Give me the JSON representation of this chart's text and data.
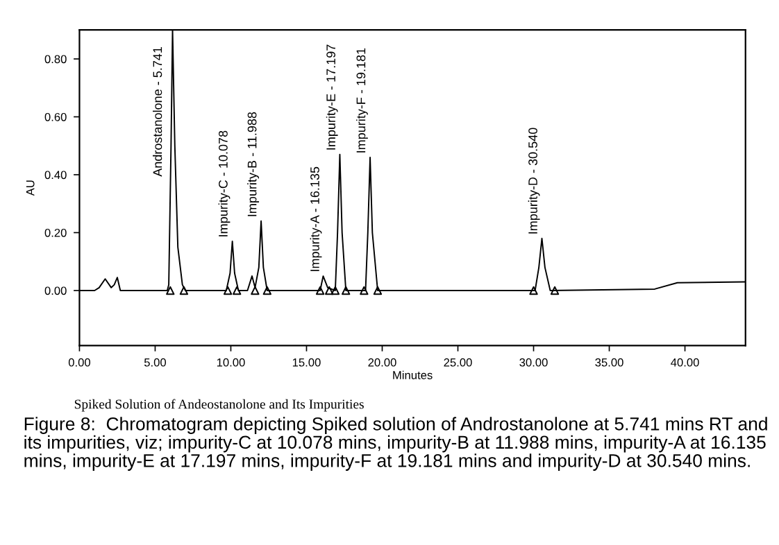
{
  "chart_data": {
    "type": "line",
    "xlabel": "Minutes",
    "ylabel": "AU",
    "xlim": [
      0,
      44
    ],
    "ylim": [
      -0.19,
      0.9
    ],
    "xticks": [
      {
        "value": 0,
        "label": "0.00"
      },
      {
        "value": 5,
        "label": "5.00"
      },
      {
        "value": 10,
        "label": "10.00"
      },
      {
        "value": 15,
        "label": "15.00"
      },
      {
        "value": 20,
        "label": "20.00"
      },
      {
        "value": 25,
        "label": "25.00"
      },
      {
        "value": 30,
        "label": "30.00"
      },
      {
        "value": 35,
        "label": "35.00"
      },
      {
        "value": 40,
        "label": "40.00"
      }
    ],
    "yticks": [
      {
        "value": 0,
        "label": "0.00"
      },
      {
        "value": 0.2,
        "label": "0.20"
      },
      {
        "value": 0.4,
        "label": "0.40"
      },
      {
        "value": 0.6,
        "label": "0.60"
      },
      {
        "value": 0.8,
        "label": "0.80"
      }
    ],
    "grid": false,
    "legend": false,
    "series": [
      {
        "color": "#000000",
        "marker": "none",
        "x": [
          0,
          1.0,
          1.3,
          1.7,
          2.1,
          2.3,
          2.5,
          2.7,
          5.8,
          5.9,
          6.05,
          6.15,
          6.3,
          6.5,
          6.8,
          7.0,
          9.7,
          9.95,
          10.1,
          10.25,
          10.5,
          11.1,
          11.4,
          11.6,
          11.85,
          12.0,
          12.15,
          12.4,
          15.9,
          16.1,
          16.4,
          16.9,
          17.05,
          17.2,
          17.35,
          17.6,
          18.9,
          19.05,
          19.2,
          19.35,
          19.7,
          30.1,
          30.35,
          30.55,
          30.75,
          31.1,
          38.0,
          39.5,
          44
        ],
        "values": [
          0,
          0,
          0.01,
          0.04,
          0.01,
          0.02,
          0.045,
          0,
          0,
          0.02,
          0.5,
          0.9,
          0.5,
          0.15,
          0.02,
          0,
          0,
          0.06,
          0.17,
          0.06,
          0,
          0,
          0.05,
          0.01,
          0.08,
          0.24,
          0.08,
          0,
          0,
          0.05,
          0.01,
          0,
          0.2,
          0.47,
          0.2,
          0,
          0,
          0.2,
          0.46,
          0.2,
          0,
          0,
          0.08,
          0.18,
          0.08,
          0,
          0.005,
          0.027,
          0.03
        ]
      },
      {
        "type": "scatter",
        "color": "#000000",
        "marker": "triangle",
        "x": [
          6.0,
          6.9,
          9.8,
          10.4,
          11.6,
          12.4,
          15.9,
          16.5,
          16.9,
          17.6,
          18.8,
          19.7,
          30.0,
          31.4
        ],
        "values": [
          0,
          0,
          0,
          0,
          0,
          0,
          0,
          0,
          0,
          0,
          0,
          0,
          0,
          0
        ]
      }
    ],
    "annotations": [
      {
        "text": "Androstanolone - 5.741",
        "x": 5.741,
        "y": 0.38
      },
      {
        "text": "Impurity-C - 10.078",
        "x": 10.078,
        "y": 0.17
      },
      {
        "text": "Impurity-B - 11.988",
        "x": 11.988,
        "y": 0.24
      },
      {
        "text": "Impurity-A - 16.135",
        "x": 16.135,
        "y": 0.05
      },
      {
        "text": "Impurity-E - 17.197",
        "x": 17.197,
        "y": 0.47
      },
      {
        "text": "Impurity-F - 19.181",
        "x": 19.181,
        "y": 0.46
      },
      {
        "text": "Impurity-D - 30.540",
        "x": 30.54,
        "y": 0.18
      },
      "Spiked Solution of Andeostanolone and Its Impurities",
      "Figure 8:  Chromatogram depicting Spiked solution of Androstanolone at 5.741 mins RT and its impurities, viz; impurity-C at 10.078 mins, impurity-B at 11.988 mins, impurity-A at 16.135 mins, impurity-E at 17.197 mins, impurity-F at 19.181 mins and impurity-D at 30.540 mins."
    ]
  }
}
